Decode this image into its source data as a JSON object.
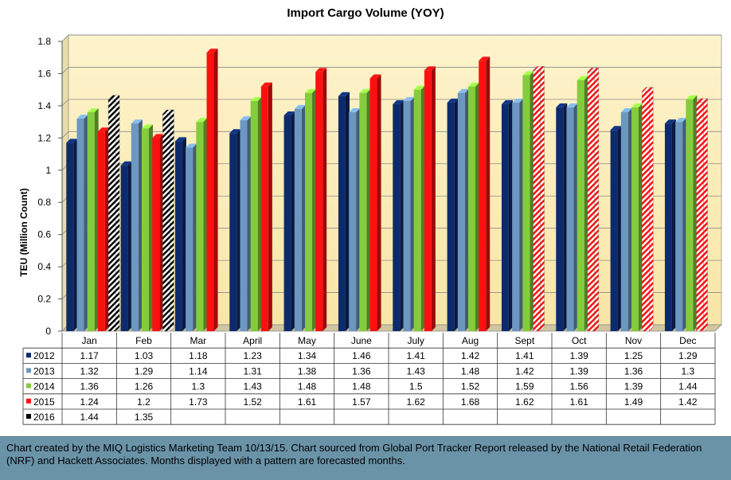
{
  "chart_data": {
    "type": "bar",
    "title": "Import Cargo Volume (YOY)",
    "xlabel": "",
    "ylabel": "TEU (Million Count)",
    "ylim": [
      0,
      1.8
    ],
    "yticks": [
      "0",
      "0.2",
      "0.4",
      "0.6",
      "0.8",
      "1",
      "1.2",
      "1.4",
      "1.6",
      "1.8"
    ],
    "categories": [
      "Jan",
      "Feb",
      "Mar",
      "April",
      "May",
      "June",
      "July",
      "Aug",
      "Sept",
      "Oct",
      "Nov",
      "Dec"
    ],
    "series": [
      {
        "name": "2012",
        "color": "#0d2a6b",
        "values": [
          1.17,
          1.03,
          1.18,
          1.23,
          1.34,
          1.46,
          1.41,
          1.42,
          1.41,
          1.39,
          1.25,
          1.29
        ],
        "forecast": []
      },
      {
        "name": "2013",
        "color": "#6b97c0",
        "values": [
          1.32,
          1.29,
          1.14,
          1.31,
          1.38,
          1.36,
          1.43,
          1.48,
          1.42,
          1.39,
          1.36,
          1.3
        ],
        "forecast": []
      },
      {
        "name": "2014",
        "color": "#84cc3c",
        "values": [
          1.36,
          1.26,
          1.3,
          1.43,
          1.48,
          1.48,
          1.5,
          1.52,
          1.59,
          1.56,
          1.39,
          1.44
        ],
        "forecast": []
      },
      {
        "name": "2015",
        "color": "#ff1010",
        "values": [
          1.24,
          1.2,
          1.73,
          1.52,
          1.61,
          1.57,
          1.62,
          1.68,
          1.62,
          1.61,
          1.49,
          1.42
        ],
        "forecast": [
          8,
          9,
          10,
          11
        ]
      },
      {
        "name": "2016",
        "color": "#000000",
        "values": [
          1.44,
          1.35,
          null,
          null,
          null,
          null,
          null,
          null,
          null,
          null,
          null,
          null
        ],
        "forecast": [
          0,
          1
        ]
      }
    ],
    "grid": true,
    "legend": "data table below chart"
  },
  "footer": {
    "text": "Chart created by the MIQ Logistics Marketing Team 10/13/15.  Chart sourced from Global Port Tracker Report released by the National Retail Federation (NRF) and Hackett Associates. Months displayed with a pattern are forecasted months."
  }
}
